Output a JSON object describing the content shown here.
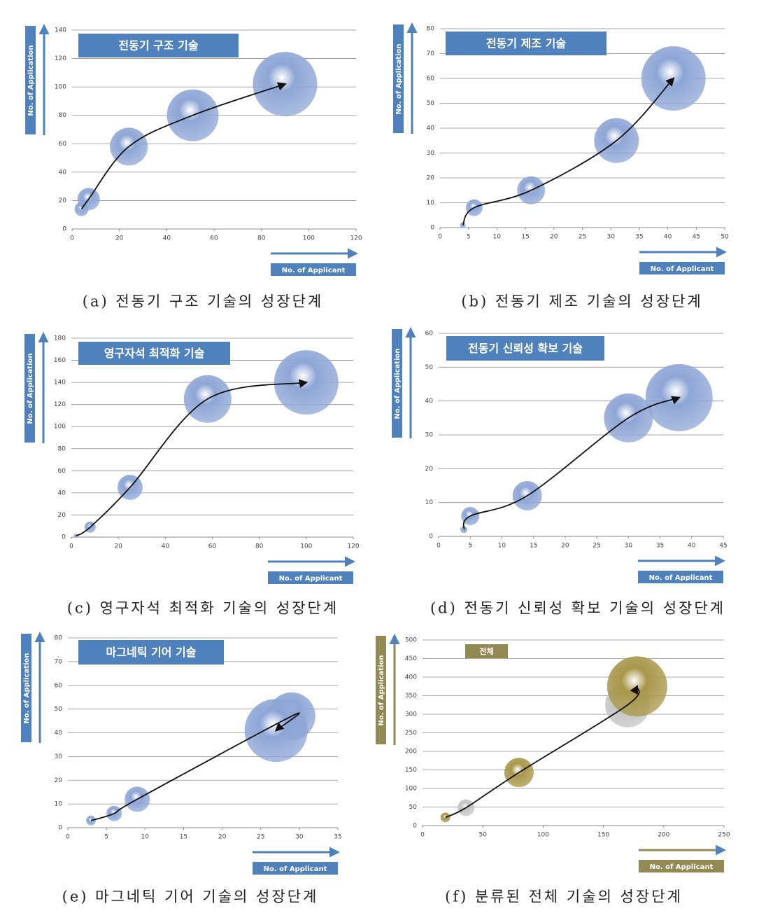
{
  "chart_data": [
    {
      "type": "bubble",
      "title": "전동기 구조 기술",
      "caption": "(a) 전동기 구조 기술의 성장단계",
      "xlabel": "No. of Applicant",
      "ylabel": "No. of Application",
      "x": [
        4,
        7,
        24,
        51,
        90
      ],
      "values": [
        14,
        21,
        58,
        80,
        102
      ],
      "sizes": [
        10,
        16,
        27,
        37,
        46
      ],
      "color": "#8ea6d6",
      "label_color": "#4f81bd",
      "xlim": [
        0,
        120
      ],
      "xticks": [
        0,
        20,
        40,
        60,
        80,
        100,
        120
      ],
      "ylim": [
        0,
        140
      ],
      "yticks": [
        0,
        20,
        40,
        60,
        80,
        100,
        120,
        140
      ],
      "grid": true
    },
    {
      "type": "bubble",
      "title": "전동기 제조 기술",
      "caption": "(b) 전동기 제조 기술의 성장단계",
      "xlabel": "No. of Applicant",
      "ylabel": "No. of Application",
      "x": [
        4,
        6,
        16,
        31,
        41
      ],
      "values": [
        1,
        8,
        15,
        35,
        60
      ],
      "sizes": [
        4,
        12,
        20,
        32,
        46
      ],
      "color": "#8ea6d6",
      "label_color": "#4f81bd",
      "xlim": [
        0,
        50
      ],
      "xticks": [
        0,
        5,
        10,
        15,
        20,
        25,
        30,
        35,
        40,
        45,
        50
      ],
      "ylim": [
        0,
        80
      ],
      "yticks": [
        0,
        10,
        20,
        30,
        40,
        50,
        60,
        70,
        80
      ],
      "grid": true
    },
    {
      "type": "bubble",
      "title": "영구자석 최적화 기술",
      "caption": "(c) 영구자석 최적화 기술의 성장단계",
      "xlabel": "No. of Applicant",
      "ylabel": "No. of Application",
      "x": [
        2,
        8,
        25,
        58,
        100
      ],
      "values": [
        1,
        9,
        45,
        125,
        140
      ],
      "sizes": [
        3,
        8,
        18,
        34,
        46
      ],
      "color": "#8ea6d6",
      "label_color": "#4f81bd",
      "xlim": [
        0,
        120
      ],
      "xticks": [
        0,
        20,
        40,
        60,
        80,
        100,
        120
      ],
      "ylim": [
        0,
        180
      ],
      "yticks": [
        0,
        20,
        40,
        60,
        80,
        100,
        120,
        140,
        160,
        180
      ],
      "grid": true
    },
    {
      "type": "bubble",
      "title": "전동기 신뢰성 확보 기술",
      "caption": "(d) 전동기 신뢰성 확보 기술의 성장단계",
      "xlabel": "No. of Applicant",
      "ylabel": "No. of Application",
      "x": [
        4,
        5,
        14,
        30,
        38
      ],
      "values": [
        2,
        6,
        12,
        35,
        41
      ],
      "sizes": [
        5,
        13,
        21,
        35,
        48
      ],
      "color": "#8ea6d6",
      "label_color": "#4f81bd",
      "xlim": [
        0,
        45
      ],
      "xticks": [
        0,
        5,
        10,
        15,
        20,
        25,
        30,
        35,
        40,
        45
      ],
      "ylim": [
        0,
        60
      ],
      "yticks": [
        0,
        10,
        20,
        30,
        40,
        50,
        60
      ],
      "grid": true
    },
    {
      "type": "bubble",
      "title": "마그네틱 기어 기술",
      "caption": "(e) 마그네틱 기어 기술의 성장단계",
      "xlabel": "No. of Applicant",
      "ylabel": "No. of Application",
      "x": [
        3,
        6,
        9,
        29,
        27
      ],
      "values": [
        3,
        6,
        12,
        47,
        41
      ],
      "sizes": [
        7,
        11,
        18,
        34,
        45
      ],
      "color": "#8ea6d6",
      "label_color": "#4f81bd",
      "xlim": [
        0,
        35
      ],
      "xticks": [
        0,
        5,
        10,
        15,
        20,
        25,
        30,
        35
      ],
      "ylim": [
        0,
        80
      ],
      "yticks": [
        0,
        10,
        20,
        30,
        40,
        50,
        60,
        70,
        80
      ],
      "grid": true
    },
    {
      "type": "bubble",
      "title": "전체",
      "caption": "(f) 분류된 전체 기술의 성장단계",
      "xlabel": "No. of Applicant",
      "ylabel": "No. of Application",
      "x": [
        19,
        36,
        80,
        170,
        178
      ],
      "values": [
        22,
        48,
        143,
        325,
        375
      ],
      "sizes": [
        7,
        12,
        21,
        32,
        43
      ],
      "colors": [
        "#a8974a",
        "#c4c4c4",
        "#a8974a",
        "#c4c4c4",
        "#a8974a"
      ],
      "label_color": "#938953",
      "xlim": [
        0,
        250
      ],
      "xticks": [
        0,
        50,
        100,
        150,
        200,
        250
      ],
      "ylim": [
        0,
        500
      ],
      "yticks": [
        0,
        50,
        100,
        150,
        200,
        250,
        300,
        350,
        400,
        450,
        500
      ],
      "grid": true
    }
  ]
}
